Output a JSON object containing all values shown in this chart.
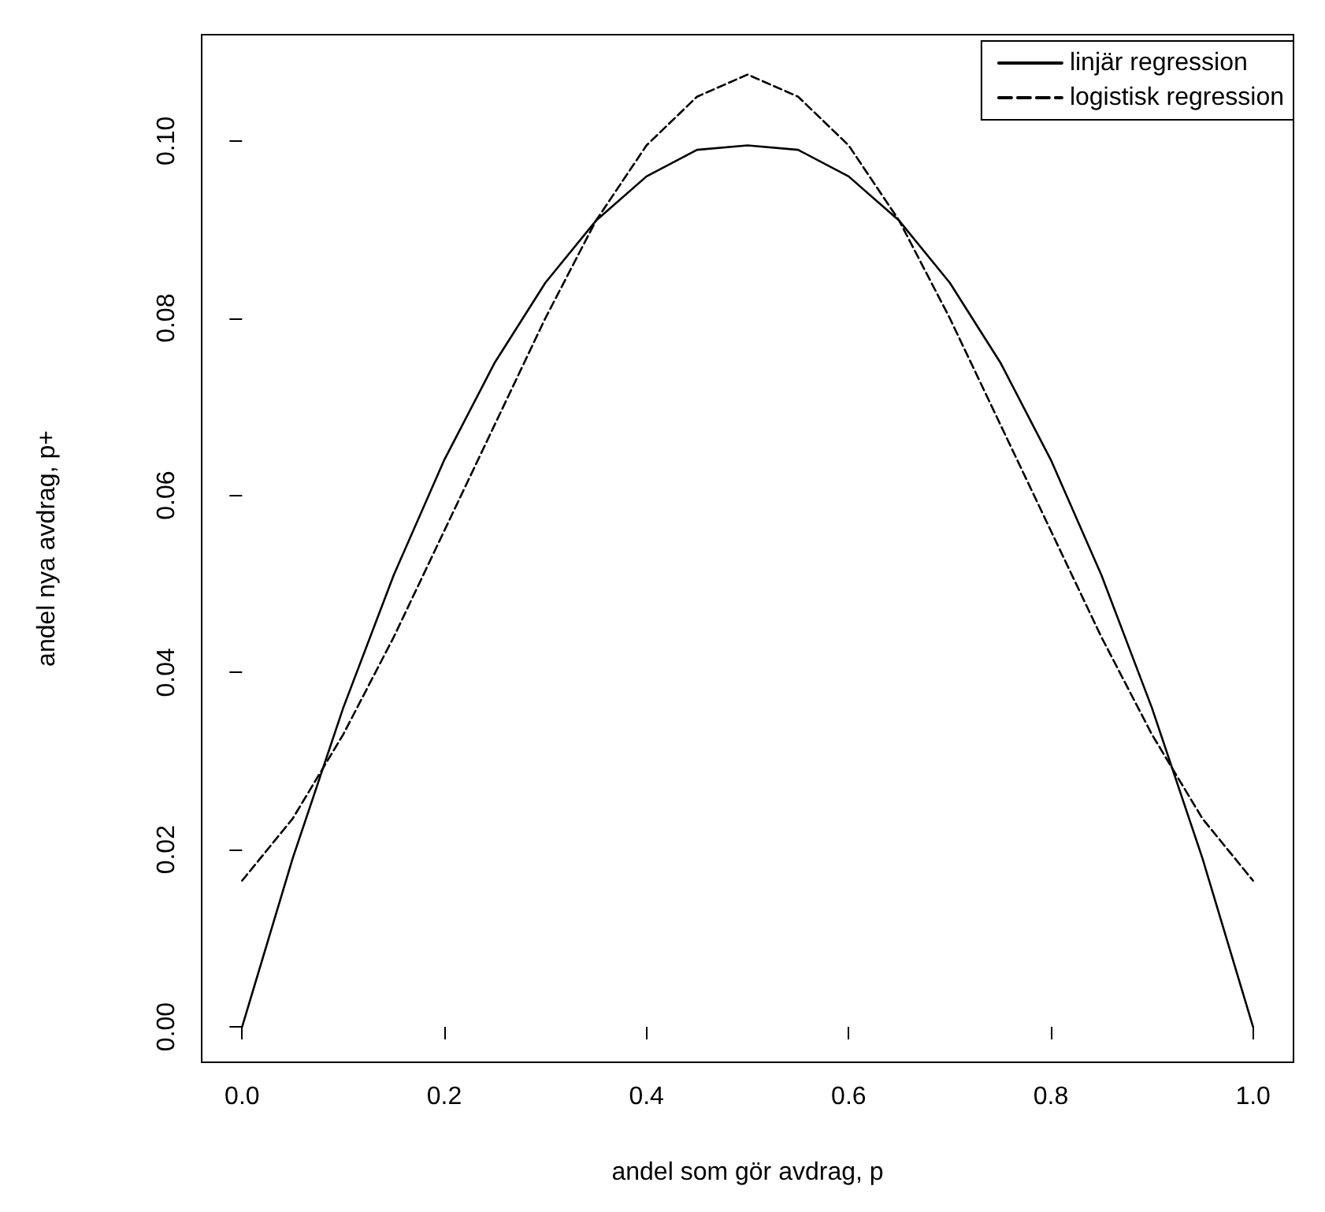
{
  "chart_data": {
    "type": "line",
    "xlabel": "andel som gör avdrag, p",
    "ylabel": "andel nya avdrag, p+",
    "xlim": [
      -0.04,
      1.04
    ],
    "ylim": [
      -0.004,
      0.112
    ],
    "xticks": [
      {
        "value": 0,
        "label": "0.0"
      },
      {
        "value": 0.2,
        "label": "0.2"
      },
      {
        "value": 0.4,
        "label": "0.4"
      },
      {
        "value": 0.6,
        "label": "0.6"
      },
      {
        "value": 0.8,
        "label": "0.8"
      },
      {
        "value": 1,
        "label": "1.0"
      }
    ],
    "yticks": [
      {
        "value": 0,
        "label": "0.00"
      },
      {
        "value": 0.02,
        "label": "0.02"
      },
      {
        "value": 0.04,
        "label": "0.04"
      },
      {
        "value": 0.06,
        "label": "0.06"
      },
      {
        "value": 0.08,
        "label": "0.08"
      },
      {
        "value": 0.1,
        "label": "0.10"
      }
    ],
    "x": [
      0,
      0.05,
      0.1,
      0.15,
      0.2,
      0.25,
      0.3,
      0.35,
      0.4,
      0.45,
      0.5,
      0.55,
      0.6,
      0.65,
      0.7,
      0.75,
      0.8,
      0.85,
      0.9,
      0.95,
      1
    ],
    "series": [
      {
        "name": "linjär regression",
        "color": "#000000",
        "line_style": "solid",
        "values": [
          0,
          0.019,
          0.036,
          0.051,
          0.064,
          0.075,
          0.084,
          0.091,
          0.096,
          0.099,
          0.0995,
          0.099,
          0.096,
          0.091,
          0.084,
          0.075,
          0.064,
          0.051,
          0.036,
          0.019,
          0
        ]
      },
      {
        "name": "logistisk regression",
        "color": "#000000",
        "line_style": "dashed",
        "values": [
          0.0165,
          0.0235,
          0.033,
          0.044,
          0.056,
          0.068,
          0.08,
          0.091,
          0.0995,
          0.105,
          0.1075,
          0.105,
          0.0995,
          0.091,
          0.08,
          0.068,
          0.056,
          0.044,
          0.033,
          0.0235,
          0.0165
        ]
      }
    ],
    "legend": "top right",
    "grid": false,
    "marker": "none"
  }
}
